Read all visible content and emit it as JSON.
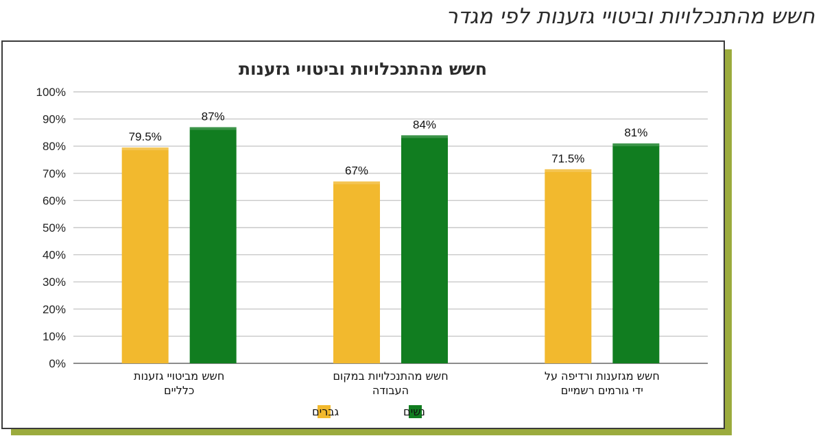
{
  "page": {
    "title": "חשש מהתנכלויות וביטויי גזענות לפי מגדר"
  },
  "chart_data": {
    "type": "bar",
    "title": "חשש מהתנכלויות וביטויי גזענות",
    "xlabel": "",
    "ylabel": "",
    "ylim": [
      0,
      100
    ],
    "y_ticks": [
      "0%",
      "10%",
      "20%",
      "30%",
      "40%",
      "50%",
      "60%",
      "70%",
      "80%",
      "90%",
      "100%"
    ],
    "grid": true,
    "legend_position": "bottom",
    "categories": [
      [
        "חשש מביטויי גזענות",
        "כלליים"
      ],
      [
        "חשש מהתנכלויות במקום",
        "העבודה"
      ],
      [
        "חשש מגזענות ורדיפה על",
        "ידי גורמים רשמיים"
      ]
    ],
    "series": [
      {
        "name": "גברים",
        "color": "#f2b92e",
        "values": [
          79.5,
          67,
          71.5
        ],
        "labels": [
          "79.5%",
          "67%",
          "71.5%"
        ]
      },
      {
        "name": "נשים",
        "color": "#117d20",
        "values": [
          87,
          84,
          81
        ],
        "labels": [
          "87%",
          "84%",
          "81%"
        ]
      }
    ]
  }
}
